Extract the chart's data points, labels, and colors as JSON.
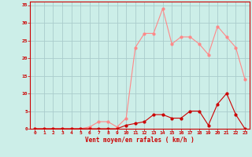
{
  "x": [
    0,
    1,
    2,
    3,
    4,
    5,
    6,
    7,
    8,
    9,
    10,
    11,
    12,
    13,
    14,
    15,
    16,
    17,
    18,
    19,
    20,
    21,
    22,
    23
  ],
  "rafales": [
    0,
    0,
    0,
    0,
    0,
    0,
    0.5,
    2,
    2,
    0.5,
    3,
    23,
    27,
    27,
    34,
    24,
    26,
    26,
    24,
    21,
    29,
    26,
    23,
    14
  ],
  "moyen": [
    0,
    0,
    0,
    0,
    0,
    0,
    0,
    0,
    0,
    0,
    1,
    1.5,
    2,
    4,
    4,
    3,
    3,
    5,
    5,
    1,
    7,
    10,
    4,
    0
  ],
  "bg_color": "#cceee8",
  "grid_color": "#aacccc",
  "line_rafales_color": "#ff8888",
  "line_moyen_color": "#cc0000",
  "xlabel": "Vent moyen/en rafales ( km/h )",
  "xlim": [
    -0.5,
    23.5
  ],
  "ylim": [
    0,
    36
  ],
  "yticks": [
    0,
    5,
    10,
    15,
    20,
    25,
    30,
    35
  ],
  "xticks": [
    0,
    1,
    2,
    3,
    4,
    5,
    6,
    7,
    8,
    9,
    10,
    11,
    12,
    13,
    14,
    15,
    16,
    17,
    18,
    19,
    20,
    21,
    22,
    23
  ]
}
